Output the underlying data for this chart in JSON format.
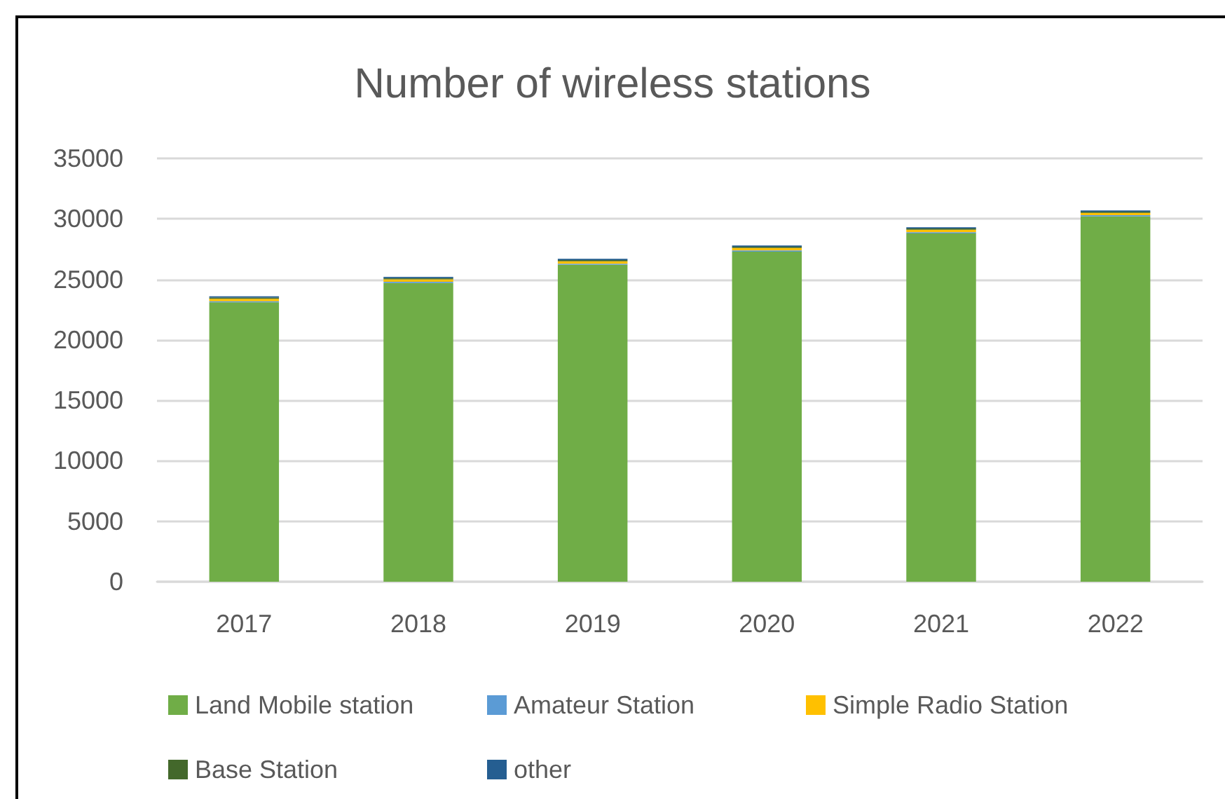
{
  "chart_data": {
    "type": "bar",
    "title": "Number of wireless stations",
    "stacked": true,
    "categories": [
      "2017",
      "2018",
      "2019",
      "2020",
      "2021",
      "2022"
    ],
    "series": [
      {
        "name": "Land Mobile station",
        "color": "#70ad47",
        "values": [
          23100,
          24700,
          26200,
          27300,
          28800,
          30200
        ]
      },
      {
        "name": "Amateur Station",
        "color": "#5b9bd5",
        "values": [
          100,
          100,
          100,
          100,
          100,
          100
        ]
      },
      {
        "name": "Simple Radio Station",
        "color": "#ffc000",
        "values": [
          200,
          200,
          200,
          200,
          200,
          200
        ]
      },
      {
        "name": "Base Station",
        "color": "#43682b",
        "values": [
          100,
          100,
          100,
          100,
          100,
          100
        ]
      },
      {
        "name": "other",
        "color": "#255e91",
        "values": [
          100,
          100,
          100,
          100,
          100,
          100
        ]
      }
    ],
    "ylim": [
      0,
      35000
    ],
    "yticks": [
      0,
      5000,
      10000,
      15000,
      20000,
      25000,
      30000,
      35000
    ],
    "grid": "y",
    "legend": "bottom"
  }
}
